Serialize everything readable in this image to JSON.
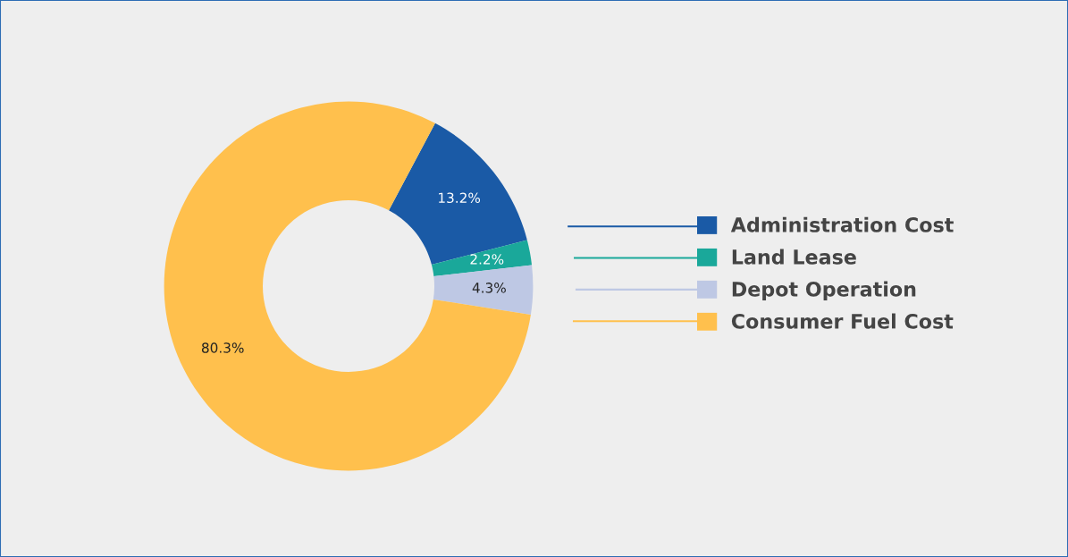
{
  "chart_data": {
    "type": "donut",
    "categories": [
      "Administration Cost",
      "Land Lease",
      "Depot Operation",
      "Consumer Fuel Cost"
    ],
    "values": [
      13.2,
      2.2,
      4.3,
      80.3
    ],
    "colors": [
      "#1a5aa6",
      "#1aa89a",
      "#bec8e4",
      "#ffc04d"
    ],
    "value_labels": [
      "13.2%",
      "2.2%",
      "4.3%",
      "80.3%"
    ],
    "legend": "right"
  }
}
